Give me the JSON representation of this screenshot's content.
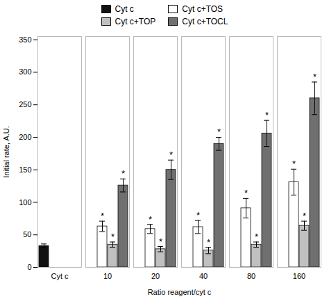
{
  "chart_data": {
    "type": "bar",
    "categories": [
      "Cyt c",
      "10",
      "20",
      "40",
      "80",
      "160"
    ],
    "series": [
      {
        "name": "Cyt c",
        "color": "#111111",
        "values": [
          33,
          null,
          null,
          null,
          null,
          null
        ],
        "errors": [
          3,
          null,
          null,
          null,
          null,
          null
        ],
        "annotations": [
          null,
          null,
          null,
          null,
          null,
          null
        ]
      },
      {
        "name": "Cyt c+TOS",
        "color": "#ffffff",
        "values": [
          null,
          63,
          59,
          62,
          91,
          131
        ],
        "errors": [
          null,
          8,
          7,
          10,
          15,
          20
        ],
        "annotations": [
          null,
          "*",
          "*",
          "*",
          "*",
          "*"
        ]
      },
      {
        "name": "Cyt c+TOP",
        "color": "#c0c0c0",
        "values": [
          null,
          35,
          28,
          26,
          35,
          64
        ],
        "errors": [
          null,
          4,
          4,
          5,
          4,
          7
        ],
        "annotations": [
          null,
          "*",
          "*",
          "*",
          "*",
          "*"
        ]
      },
      {
        "name": "Cyt c+TOCL",
        "color": "#707070",
        "values": [
          null,
          126,
          150,
          190,
          206,
          260
        ],
        "errors": [
          null,
          10,
          15,
          10,
          20,
          25
        ],
        "annotations": [
          null,
          "*",
          "*",
          "*",
          "*",
          "*"
        ]
      }
    ],
    "xlabel": "Ratio reagent/cyt c",
    "ylabel": "Initial rate, A.U.",
    "ylim": [
      0,
      355
    ],
    "yticks": [
      0,
      50,
      100,
      150,
      200,
      250,
      300,
      350
    ],
    "grid": false,
    "legend": "top"
  }
}
